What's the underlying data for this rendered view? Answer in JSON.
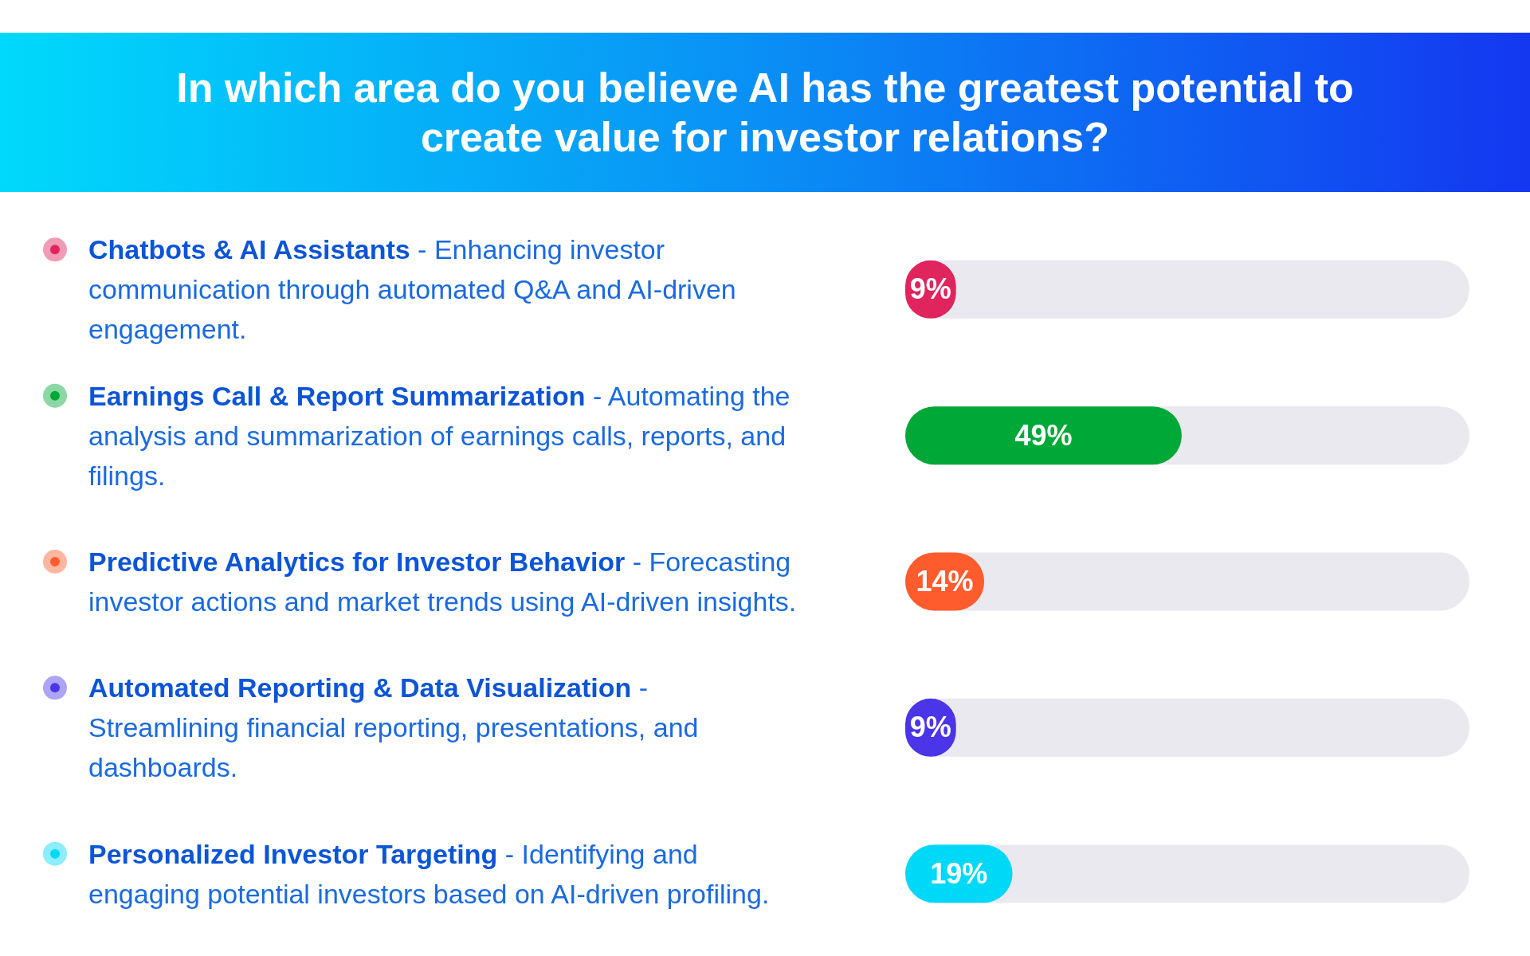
{
  "chart_data": {
    "type": "bar",
    "orientation": "horizontal",
    "title": "In which area do you believe AI has the greatest potential to create value for investor relations?",
    "categories": [
      "Chatbots & AI Assistants - Enhancing investor communication through automated Q&A and AI-driven engagement.",
      "Earnings Call & Report Summarization - Automating the analysis and summarization of earnings calls, reports, and filings.",
      "Predictive Analytics for Investor Behavior - Forecasting investor actions and market trends using AI-driven insights.",
      "Automated Reporting & Data Visualization - Streamlining financial reporting, presentations, and dashboards.",
      "Personalized Investor Targeting - Identifying and engaging potential investors based on AI-driven profiling."
    ],
    "values": [
      9,
      49,
      14,
      9,
      19
    ],
    "colors": [
      "#e0245e",
      "#00a838",
      "#ff5c2e",
      "#4a35e8",
      "#00d8f8"
    ],
    "value_labels": [
      "9%",
      "49%",
      "14%",
      "9%",
      "19%"
    ]
  }
}
